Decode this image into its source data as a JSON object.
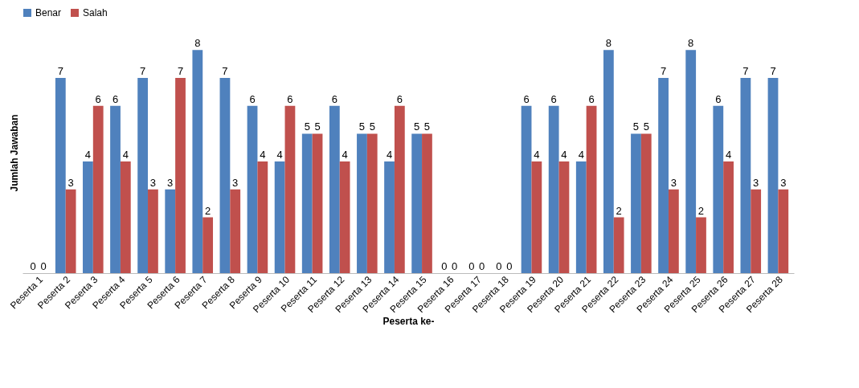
{
  "chart_data": {
    "type": "bar",
    "xlabel": "Peserta ke-",
    "ylabel": "Jumlah Jawaban",
    "categories": [
      "Peserta 1",
      "Peserta 2",
      "Peserta 3",
      "Peserta 4",
      "Peserta 5",
      "Peserta 6",
      "Peserta 7",
      "Peserta 8",
      "Peserta 9",
      "Peserta 10",
      "Peserta 11",
      "Peserta 12",
      "Peserta 13",
      "Peserta 14",
      "Peserta 15",
      "Peserta 16",
      "Peserta 17",
      "Peserta 18",
      "Peserta 19",
      "Peserta 20",
      "Peserta 21",
      "Peserta 22",
      "Peserta 23",
      "Peserta 24",
      "Peserta 25",
      "Peserta 26",
      "Peserta 27",
      "Peserta 28"
    ],
    "series": [
      {
        "name": "Benar",
        "color": "#4f81bd",
        "values": [
          0,
          7,
          4,
          6,
          7,
          3,
          8,
          7,
          6,
          4,
          5,
          6,
          5,
          4,
          5,
          0,
          0,
          0,
          6,
          6,
          4,
          8,
          5,
          7,
          8,
          6,
          7,
          7
        ]
      },
      {
        "name": "Salah",
        "color": "#c0504d",
        "values": [
          0,
          3,
          6,
          4,
          3,
          7,
          2,
          3,
          4,
          6,
          5,
          4,
          5,
          6,
          5,
          0,
          0,
          0,
          4,
          4,
          6,
          2,
          5,
          3,
          2,
          4,
          3,
          3
        ]
      }
    ],
    "data_labels": true,
    "legend": "top",
    "grid": false,
    "tick_labels": "x"
  }
}
